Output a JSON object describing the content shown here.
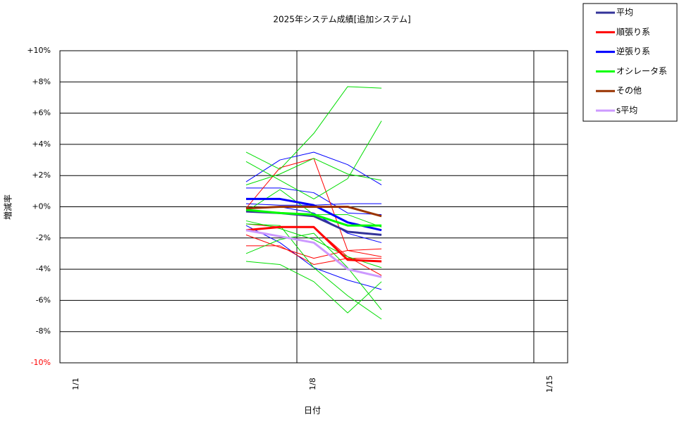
{
  "chart_data": {
    "type": "line",
    "title": "2025年システム成績[追加システム]",
    "x_label": "日付",
    "y_label": "増減率",
    "x": [
      6.5,
      7.5,
      8.5,
      9.5,
      10.5
    ],
    "xlim": [
      1,
      16
    ],
    "xticks": [
      {
        "value": 1,
        "label": "1/1"
      },
      {
        "value": 8,
        "label": "1/8"
      },
      {
        "value": 15,
        "label": "1/15"
      }
    ],
    "ylim": [
      -10,
      10
    ],
    "yticks": [
      {
        "value": -10,
        "label": "-10%"
      },
      {
        "value": -8,
        "label": "-8%"
      },
      {
        "value": -6,
        "label": "-6%"
      },
      {
        "value": -4,
        "label": "-4%"
      },
      {
        "value": -2,
        "label": "-2%"
      },
      {
        "value": 0,
        "label": "+0%"
      },
      {
        "value": 2,
        "label": "+2%"
      },
      {
        "value": 4,
        "label": "+4%"
      },
      {
        "value": 6,
        "label": "+6%"
      },
      {
        "value": 8,
        "label": "+8%"
      },
      {
        "value": 10,
        "label": "+10%"
      }
    ],
    "grid": true,
    "legend": "outside-top-right",
    "thin_series": [
      {
        "color": "#0000ff",
        "values": [
          1.6,
          3.0,
          3.5,
          2.7,
          1.4
        ]
      },
      {
        "color": "#0000ff",
        "values": [
          1.2,
          1.2,
          0.9,
          -0.4,
          -0.5
        ]
      },
      {
        "color": "#0000ff",
        "values": [
          -0.1,
          0,
          -0.4,
          -1.7,
          -2.3
        ]
      },
      {
        "color": "#0000ff",
        "values": [
          -1.2,
          -2.3,
          -3.9,
          -4.7,
          -5.3
        ]
      },
      {
        "color": "#0000ff",
        "values": [
          0.2,
          0.1,
          0.1,
          0.2,
          0.2
        ]
      },
      {
        "color": "#ff0000",
        "values": [
          -0.1,
          2.5,
          3.1,
          -2.8,
          -3.2
        ]
      },
      {
        "color": "#ff0000",
        "values": [
          -1.1,
          -1.3,
          -1.3,
          -3.2,
          -4.4
        ]
      },
      {
        "color": "#ff0000",
        "values": [
          -2.5,
          -2.5,
          -3.7,
          -3.3,
          -3.3
        ]
      },
      {
        "color": "#ff0000",
        "values": [
          -1.8,
          -2.6,
          -3.3,
          -2.8,
          -2.7
        ]
      },
      {
        "color": "#00dd00",
        "values": [
          3.5,
          2.4,
          4.7,
          7.7,
          7.6
        ]
      },
      {
        "color": "#00dd00",
        "values": [
          2.9,
          1.7,
          0.5,
          1.8,
          5.5
        ]
      },
      {
        "color": "#00dd00",
        "values": [
          1.4,
          2.1,
          3.1,
          2.1,
          1.7
        ]
      },
      {
        "color": "#00dd00",
        "values": [
          -0.3,
          1.1,
          -0.5,
          -0.5,
          -1.3
        ]
      },
      {
        "color": "#00dd00",
        "values": [
          -0.9,
          -1.4,
          -2.1,
          -3.2,
          -3.9
        ]
      },
      {
        "color": "#00dd00",
        "values": [
          -3.0,
          -2.1,
          -1.7,
          -3.9,
          -6.6
        ]
      },
      {
        "color": "#00dd00",
        "values": [
          -3.5,
          -3.7,
          -4.8,
          -6.8,
          -4.8
        ]
      },
      {
        "color": "#00dd00",
        "values": [
          -1.1,
          -1.2,
          -3.9,
          -5.7,
          -7.2
        ]
      }
    ],
    "series": [
      {
        "name": "平均",
        "color": "#333399",
        "values": [
          -0.3,
          -0.4,
          -0.6,
          -1.6,
          -1.8
        ]
      },
      {
        "name": "順張り系",
        "color": "#ff0000",
        "values": [
          -1.5,
          -1.3,
          -1.3,
          -3.4,
          -3.5
        ]
      },
      {
        "name": "逆張り系",
        "color": "#0000ff",
        "values": [
          0.5,
          0.5,
          0.1,
          -1.0,
          -1.5
        ]
      },
      {
        "name": "オシレータ系",
        "color": "#00ff00",
        "values": [
          -0.2,
          -0.4,
          -0.5,
          -1.2,
          -1.2
        ]
      },
      {
        "name": "その他",
        "color": "#993300",
        "values": [
          -0.1,
          0.0,
          0.0,
          0.0,
          -0.6
        ]
      },
      {
        "name": "s平均",
        "color": "#cc99ff",
        "values": [
          -1.5,
          -1.9,
          -2.3,
          -4.0,
          -4.5
        ]
      }
    ]
  }
}
